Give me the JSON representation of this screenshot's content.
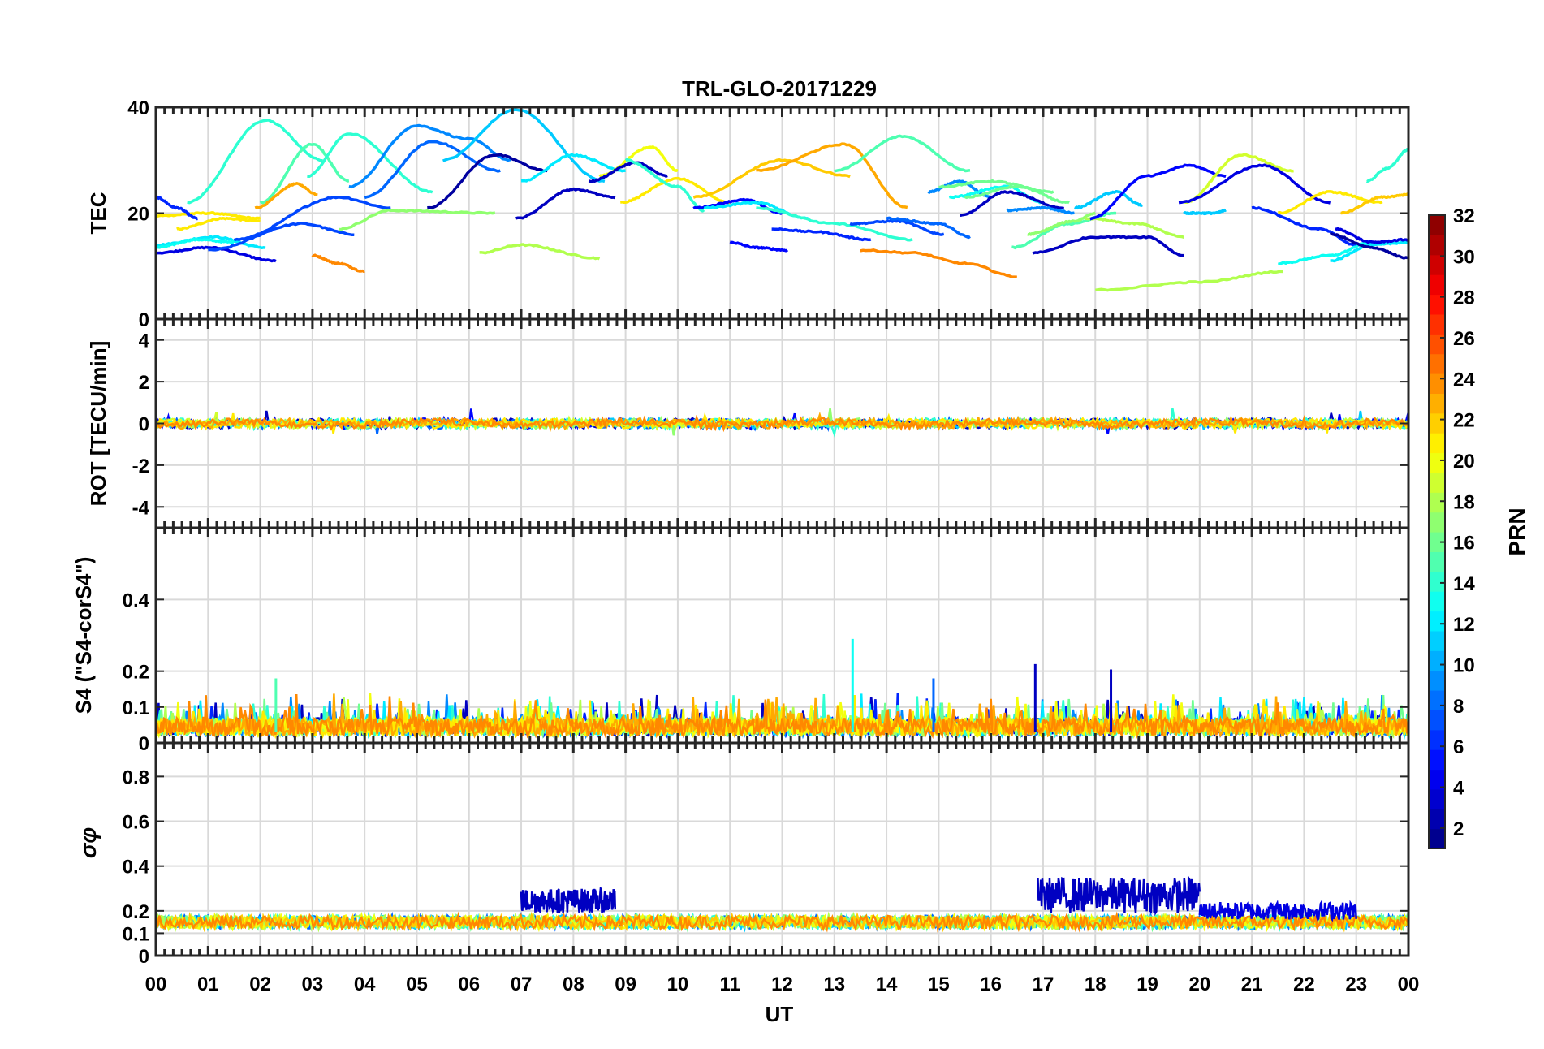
{
  "chart_data": {
    "type": "line",
    "title": "TRL-GLO-20171229",
    "xlabel": "UT",
    "x_range_hours": [
      0,
      24
    ],
    "x_tick_labels": [
      "00",
      "01",
      "02",
      "03",
      "04",
      "05",
      "06",
      "07",
      "08",
      "09",
      "10",
      "11",
      "12",
      "13",
      "14",
      "15",
      "16",
      "17",
      "18",
      "19",
      "20",
      "21",
      "22",
      "23",
      "00"
    ],
    "grid": true,
    "colorbar": {
      "label": "PRN",
      "colormap": "jet",
      "range": [
        1,
        32
      ],
      "tick_labels": [
        "2",
        "4",
        "6",
        "8",
        "10",
        "12",
        "14",
        "16",
        "18",
        "20",
        "22",
        "24",
        "26",
        "28",
        "30",
        "32"
      ],
      "tick_values": [
        2,
        4,
        6,
        8,
        10,
        12,
        14,
        16,
        18,
        20,
        22,
        24,
        26,
        28,
        30,
        32
      ]
    },
    "panels": [
      {
        "name": "TEC",
        "ylabel": "TEC",
        "ylim": [
          0,
          40
        ],
        "y_ticks": [
          0,
          20,
          40
        ],
        "y_tick_labels": [
          "0",
          "20",
          "40"
        ],
        "series": [
          {
            "prn": 14,
            "t": [
              0.6,
              2.1,
              3.2
            ],
            "v": [
              22,
              37.5,
              30
            ]
          },
          {
            "prn": 15,
            "t": [
              2.0,
              3.0,
              3.7
            ],
            "v": [
              22,
              33,
              26
            ]
          },
          {
            "prn": 14,
            "t": [
              2.9,
              3.7,
              5.3
            ],
            "v": [
              27,
              35,
              24
            ]
          },
          {
            "prn": 21,
            "t": [
              0.0,
              1.0,
              2.0
            ],
            "v": [
              19.5,
              20,
              19
            ]
          },
          {
            "prn": 21,
            "t": [
              0.4,
              1.3,
              2.0
            ],
            "v": [
              17,
              19,
              18.5
            ]
          },
          {
            "prn": 23,
            "t": [
              1.9,
              2.7,
              3.1
            ],
            "v": [
              21,
              25.5,
              23.5
            ]
          },
          {
            "prn": 12,
            "t": [
              0.0,
              1.1,
              2.1
            ],
            "v": [
              14,
              15.5,
              13.5
            ]
          },
          {
            "prn": 13,
            "t": [
              0.0,
              0.8,
              1.5
            ],
            "v": [
              13.5,
              15,
              14.5
            ]
          },
          {
            "prn": 4,
            "t": [
              0.0,
              1.0,
              2.3
            ],
            "v": [
              12.5,
              13.5,
              11
            ]
          },
          {
            "prn": 6,
            "t": [
              0.0,
              0.4,
              0.8
            ],
            "v": [
              23,
              21,
              19
            ]
          },
          {
            "prn": 7,
            "t": [
              1.0,
              2.8,
              3.8
            ],
            "v": [
              13,
              18,
              16
            ]
          },
          {
            "prn": 7,
            "t": [
              1.5,
              3.5,
              4.5
            ],
            "v": [
              15,
              23,
              21
            ]
          },
          {
            "prn": 24,
            "t": [
              3.0,
              3.5,
              4.0
            ],
            "v": [
              12,
              10.5,
              9
            ]
          },
          {
            "prn": 17,
            "t": [
              3.5,
              4.5,
              6.5
            ],
            "v": [
              17,
              20.5,
              20
            ]
          },
          {
            "prn": 9,
            "t": [
              3.7,
              5.0,
              6.0,
              6.8
            ],
            "v": [
              25,
              36.5,
              34,
              30
            ]
          },
          {
            "prn": 8,
            "t": [
              4.0,
              5.3,
              6.6
            ],
            "v": [
              23,
              33.5,
              28
            ]
          },
          {
            "prn": 11,
            "t": [
              5.5,
              6.9,
              8.6
            ],
            "v": [
              30,
              39.5,
              26
            ]
          },
          {
            "prn": 2,
            "t": [
              5.2,
              6.5,
              7.5
            ],
            "v": [
              21,
              31,
              28
            ]
          },
          {
            "prn": 18,
            "t": [
              6.2,
              7.0,
              8.5
            ],
            "v": [
              12.5,
              14,
              11.5
            ]
          },
          {
            "prn": 3,
            "t": [
              6.9,
              8.0,
              8.8
            ],
            "v": [
              19,
              24.5,
              23
            ]
          },
          {
            "prn": 12,
            "t": [
              7.0,
              8.0,
              9.0
            ],
            "v": [
              26,
              31,
              28
            ]
          },
          {
            "prn": 20,
            "t": [
              8.5,
              9.5,
              10.0
            ],
            "v": [
              27,
              32.5,
              28
            ]
          },
          {
            "prn": 3,
            "t": [
              8.3,
              9.2,
              9.8
            ],
            "v": [
              26,
              29.5,
              27
            ]
          },
          {
            "prn": 21,
            "t": [
              8.9,
              10.0,
              11.0
            ],
            "v": [
              22,
              26.5,
              22
            ]
          },
          {
            "prn": 14,
            "t": [
              9.0,
              10.0,
              10.5
            ],
            "v": [
              30,
              25,
              20.5
            ]
          },
          {
            "prn": 22,
            "t": [
              10.3,
              12.0,
              13.3
            ],
            "v": [
              23,
              30,
              27
            ]
          },
          {
            "prn": 23,
            "t": [
              11.5,
              13.2,
              14.4
            ],
            "v": [
              28,
              33,
              21
            ]
          },
          {
            "prn": 5,
            "t": [
              10.3,
              11.3,
              12.0
            ],
            "v": [
              21,
              22.5,
              20
            ]
          },
          {
            "prn": 12,
            "t": [
              10.5,
              11.5,
              12.5
            ],
            "v": [
              21,
              22,
              19
            ]
          },
          {
            "prn": 14,
            "t": [
              11.5,
              13.0,
              14.5
            ],
            "v": [
              21,
              18,
              15
            ]
          },
          {
            "prn": 5,
            "t": [
              11.0,
              11.5,
              12.1
            ],
            "v": [
              14.5,
              13.5,
              13
            ]
          },
          {
            "prn": 6,
            "t": [
              11.8,
              12.6,
              13.7
            ],
            "v": [
              17,
              16.5,
              15
            ]
          },
          {
            "prn": 15,
            "t": [
              13.0,
              14.3,
              15.6
            ],
            "v": [
              28,
              34.5,
              28
            ]
          },
          {
            "prn": 7,
            "t": [
              13.3,
              14.2,
              15.1
            ],
            "v": [
              18,
              18.5,
              16
            ]
          },
          {
            "prn": 24,
            "t": [
              13.5,
              14.5,
              15.5,
              16.5
            ],
            "v": [
              13,
              12.5,
              10.5,
              8
            ]
          },
          {
            "prn": 8,
            "t": [
              14.0,
              15.0,
              15.6
            ],
            "v": [
              19,
              18,
              15.5
            ]
          },
          {
            "prn": 9,
            "t": [
              14.8,
              15.4,
              16.0
            ],
            "v": [
              24,
              26,
              23
            ]
          },
          {
            "prn": 16,
            "t": [
              15.0,
              16.0,
              17.2
            ],
            "v": [
              25,
              26,
              24
            ]
          },
          {
            "prn": 13,
            "t": [
              15.2,
              16.3,
              17.0
            ],
            "v": [
              23,
              25,
              22
            ]
          },
          {
            "prn": 16,
            "t": [
              15.5,
              16.5,
              17.5
            ],
            "v": [
              23,
              25,
              22
            ]
          },
          {
            "prn": 3,
            "t": [
              15.4,
              16.3,
              17.4
            ],
            "v": [
              19.5,
              24,
              21
            ]
          },
          {
            "prn": 9,
            "t": [
              16.3,
              17.0,
              17.6
            ],
            "v": [
              20.5,
              21,
              20
            ]
          },
          {
            "prn": 15,
            "t": [
              16.4,
              17.5,
              18.4
            ],
            "v": [
              13.5,
              18,
              20
            ]
          },
          {
            "prn": 17,
            "t": [
              16.7,
              17.6,
              18.0
            ],
            "v": [
              16,
              18.5,
              20
            ]
          },
          {
            "prn": 11,
            "t": [
              17.6,
              18.4,
              18.9
            ],
            "v": [
              21,
              24,
              21.5
            ]
          },
          {
            "prn": 18,
            "t": [
              17.8,
              18.8,
              19.7
            ],
            "v": [
              19,
              18,
              15.5
            ]
          },
          {
            "prn": 3,
            "t": [
              16.8,
              18.0,
              19.0,
              19.7
            ],
            "v": [
              12.5,
              15.5,
              15.5,
              12
            ]
          },
          {
            "prn": 5,
            "t": [
              17.9,
              19.0,
              19.8,
              20.5
            ],
            "v": [
              19,
              27,
              29,
              27
            ]
          },
          {
            "prn": 11,
            "t": [
              19.7,
              20.3,
              20.5
            ],
            "v": [
              20,
              20,
              20.5
            ]
          },
          {
            "prn": 18,
            "t": [
              18.0,
              20.0,
              21.6
            ],
            "v": [
              5.5,
              7,
              9
            ]
          },
          {
            "prn": 19,
            "t": [
              19.7,
              20.8,
              21.8
            ],
            "v": [
              22,
              31,
              28
            ]
          },
          {
            "prn": 4,
            "t": [
              19.6,
              21.2,
              22.5
            ],
            "v": [
              22,
              29,
              22
            ]
          },
          {
            "prn": 6,
            "t": [
              21.0,
              22.3,
              23.0
            ],
            "v": [
              21,
              17,
              14
            ]
          },
          {
            "prn": 21,
            "t": [
              21.5,
              22.5,
              23.5
            ],
            "v": [
              20,
              24,
              22
            ]
          },
          {
            "prn": 22,
            "t": [
              22.7,
              23.5,
              24.0
            ],
            "v": [
              20,
              23,
              23.5
            ]
          },
          {
            "prn": 13,
            "t": [
              21.5,
              22.5,
              23.3
            ],
            "v": [
              10.5,
              12,
              14.5
            ]
          },
          {
            "prn": 12,
            "t": [
              22.5,
              23.3,
              24.0
            ],
            "v": [
              11,
              14,
              14.5
            ]
          },
          {
            "prn": 14,
            "t": [
              23.2,
              23.6,
              24.0
            ],
            "v": [
              26,
              28.5,
              32
            ]
          },
          {
            "prn": 4,
            "t": [
              22.6,
              23.3,
              24.0
            ],
            "v": [
              17,
              14.5,
              15
            ]
          },
          {
            "prn": 2,
            "t": [
              22.5,
              23.3,
              24.0
            ],
            "v": [
              16,
              13.5,
              11.5
            ]
          }
        ]
      },
      {
        "name": "ROT",
        "ylabel": "ROT [TECU/min]",
        "ylim": [
          -5,
          5
        ],
        "y_ticks": [
          -4,
          -2,
          0,
          2,
          4
        ],
        "y_tick_labels": [
          "-4",
          "-2",
          "0",
          "2",
          "4"
        ]
      },
      {
        "name": "S4",
        "ylabel": "S4 (\"S4-corS4\")",
        "ylim": [
          0,
          0.6
        ],
        "y_ticks": [
          0,
          0.1,
          0.2,
          0.4
        ],
        "y_tick_labels": [
          "0",
          "0.1",
          "0.2",
          "0.4"
        ],
        "spikes": [
          {
            "prn": 13,
            "t": 13.35,
            "v": 0.29
          },
          {
            "prn": 3,
            "t": 16.85,
            "v": 0.22
          },
          {
            "prn": 3,
            "t": 18.3,
            "v": 0.205
          },
          {
            "prn": 15,
            "t": 2.3,
            "v": 0.18
          },
          {
            "prn": 8,
            "t": 14.9,
            "v": 0.18
          }
        ]
      },
      {
        "name": "sigma_phi",
        "ylabel": "σφ",
        "ylim": [
          0,
          0.95
        ],
        "y_ticks": [
          0,
          0.1,
          0.2,
          0.4,
          0.6,
          0.8
        ],
        "y_tick_labels": [
          "0",
          "0.1",
          "0.2",
          "0.4",
          "0.6",
          "0.8"
        ],
        "elevated_periods": [
          {
            "prn": 3,
            "t": [
              7.0,
              8.8
            ],
            "level": 0.22,
            "peak": 0.3
          },
          {
            "prn": 3,
            "t": [
              16.9,
              20.0
            ],
            "level": 0.22,
            "peak": 0.35
          },
          {
            "prn": 4,
            "t": [
              20.0,
              23.0
            ],
            "level": 0.19,
            "peak": 0.24
          }
        ]
      }
    ]
  }
}
